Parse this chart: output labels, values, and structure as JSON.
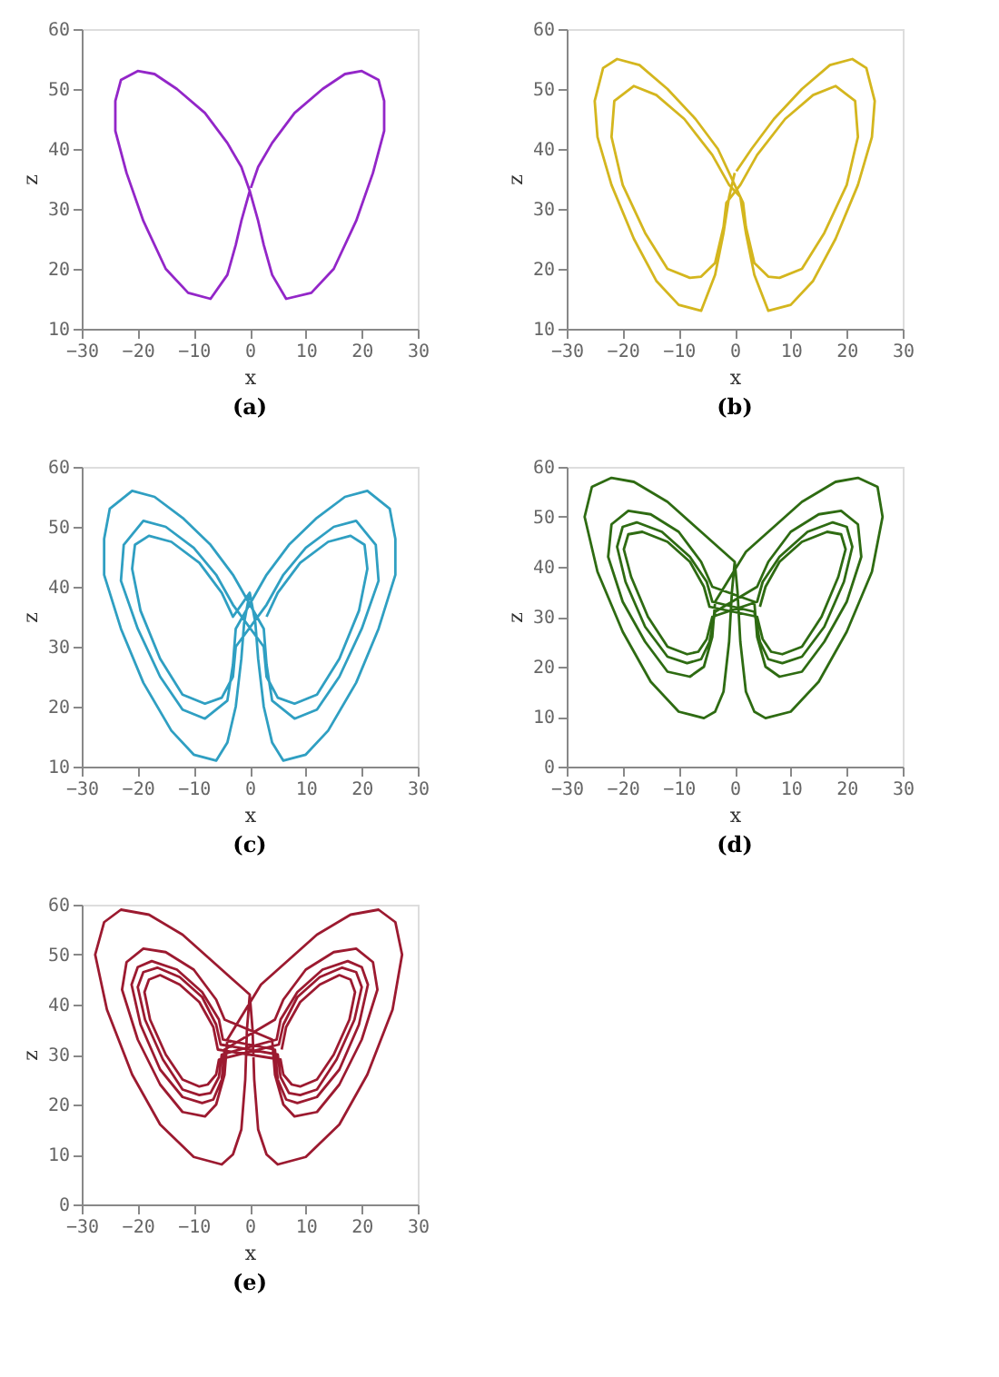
{
  "chart_data": [
    {
      "type": "line",
      "title": "(a)",
      "xlabel": "x",
      "ylabel": "z",
      "xlim": [
        -30,
        30
      ],
      "xticks": [
        -30,
        -20,
        -10,
        0,
        10,
        20,
        30
      ],
      "ylim": [
        10,
        60
      ],
      "yticks": [
        10,
        20,
        30,
        40,
        50,
        60
      ],
      "series": [
        {
          "color": "#9326c8",
          "x": [
            0,
            -1.5,
            -2.5,
            -4,
            -7,
            -11,
            -15,
            -19,
            -22,
            -24,
            -24,
            -23,
            -20,
            -17,
            -13,
            -8,
            -4,
            -1.5,
            0,
            1.5,
            2.5,
            4,
            6.5,
            11,
            15,
            19,
            22,
            24,
            24,
            23,
            20,
            17,
            13,
            8,
            4,
            1.5,
            0.2
          ],
          "values": [
            33,
            28,
            24,
            19,
            15,
            16,
            20,
            28,
            36,
            43,
            48,
            51.5,
            53,
            52.5,
            50,
            46,
            41,
            37,
            33,
            28,
            24,
            19,
            15,
            16,
            20,
            28,
            36,
            43,
            48,
            51.5,
            53,
            52.5,
            50,
            46,
            41,
            37,
            33.5
          ]
        }
      ]
    },
    {
      "type": "line",
      "title": "(b)",
      "xlabel": "x",
      "ylabel": "z",
      "xlim": [
        -30,
        30
      ],
      "xticks": [
        -30,
        -20,
        -10,
        0,
        10,
        20,
        30
      ],
      "ylim": [
        10,
        60
      ],
      "yticks": [
        10,
        20,
        30,
        40,
        50,
        60
      ],
      "series": [
        {
          "color": "#d4b61e",
          "x": [
            0,
            -1,
            -2,
            -3.5,
            -6,
            -10,
            -14,
            -18,
            -22,
            -24.5,
            -25,
            -23.5,
            -21,
            -17,
            -12,
            -7,
            -3,
            1.5,
            2,
            3.5,
            6,
            8,
            12,
            16,
            20,
            22,
            21.5,
            18,
            14,
            9,
            4,
            1,
            -1.5,
            -2,
            -3.5,
            -6,
            -8,
            -12,
            -16,
            -20,
            -22,
            -21.5,
            -18,
            -14,
            -9,
            -4,
            -1,
            1,
            2,
            3.5,
            6,
            10,
            14,
            18,
            22,
            24.5,
            25,
            23.5,
            21,
            17,
            12,
            7,
            3,
            0.3
          ],
          "values": [
            36,
            32,
            26,
            19,
            13,
            14,
            18,
            25,
            34,
            42,
            48,
            53.5,
            55,
            54,
            50,
            45,
            40,
            31,
            27,
            21,
            18.7,
            18.5,
            20,
            26,
            34,
            42,
            48,
            50.5,
            49,
            45,
            39,
            34,
            31,
            27,
            21,
            18.7,
            18.5,
            20,
            26,
            34,
            42,
            48,
            50.5,
            49,
            45,
            39,
            34,
            32,
            26,
            19,
            13,
            14,
            18,
            25,
            34,
            42,
            48,
            53.5,
            55,
            54,
            50,
            45,
            40,
            36.3
          ]
        }
      ]
    },
    {
      "type": "line",
      "title": "(c)",
      "xlabel": "x",
      "ylabel": "z",
      "xlim": [
        -30,
        30
      ],
      "xticks": [
        -30,
        -20,
        -10,
        0,
        10,
        20,
        30
      ],
      "ylim": [
        10,
        60
      ],
      "yticks": [
        10,
        20,
        30,
        40,
        50,
        60
      ],
      "series": [
        {
          "color": "#2f9fc2",
          "x": [
            0,
            -1,
            -1.5,
            -2.5,
            -4,
            -6,
            -10,
            -14,
            -19,
            -23,
            -26,
            -26,
            -25,
            -21,
            -17,
            -12,
            -7,
            -3,
            2.5,
            3,
            4,
            8,
            12,
            16,
            20,
            23,
            22.5,
            19,
            15,
            10,
            6,
            3,
            -2.5,
            -3,
            -5,
            -8,
            -12,
            -16,
            -19.5,
            -21,
            -20.5,
            -18,
            -14,
            -9,
            -5,
            -3,
            0,
            1,
            1.5,
            2.5,
            4,
            6,
            10,
            14,
            19,
            23,
            26,
            26,
            25,
            21,
            17,
            12,
            7,
            3,
            -2.5,
            -3,
            -4,
            -8,
            -12,
            -16,
            -20,
            -23,
            -22.5,
            -19,
            -15,
            -10,
            -6,
            -3,
            2.5,
            3,
            5,
            8,
            12,
            16,
            19.5,
            21,
            20.5,
            18,
            14,
            9,
            5,
            3
          ],
          "values": [
            39,
            34,
            28,
            20,
            14,
            11,
            12,
            16,
            24,
            33,
            42,
            48,
            53,
            56,
            55,
            51.5,
            47,
            42,
            33,
            27,
            21,
            18,
            19.5,
            25,
            33,
            41,
            47,
            51,
            50,
            46.5,
            42,
            37,
            30,
            25,
            21.5,
            20.5,
            22,
            28,
            36,
            43,
            47,
            48.5,
            47.5,
            44,
            39,
            35,
            39,
            34,
            28,
            20,
            14,
            11,
            12,
            16,
            24,
            33,
            42,
            48,
            53,
            56,
            55,
            51.5,
            47,
            42,
            33,
            27,
            21,
            18,
            19.5,
            25,
            33,
            41,
            47,
            51,
            50,
            46.5,
            42,
            37,
            30,
            25,
            21.5,
            20.5,
            22,
            28,
            36,
            43,
            47,
            48.5,
            47.5,
            44,
            39,
            35
          ]
        }
      ]
    },
    {
      "type": "line",
      "title": "(d)",
      "xlabel": "x",
      "ylabel": "z",
      "xlim": [
        -30,
        30
      ],
      "xticks": [
        -30,
        -20,
        -10,
        0,
        10,
        20,
        30
      ],
      "ylim": [
        0,
        60
      ],
      "yticks": [
        0,
        10,
        20,
        30,
        40,
        50,
        60
      ],
      "series": [
        {
          "color": "#2e6b12",
          "x": [
            0,
            -0.5,
            -1,
            -2,
            -3.5,
            -5.5,
            -10,
            -15,
            -20,
            -24.5,
            -26.8,
            -25.5,
            -22,
            -18,
            -12,
            -6,
            -2,
            0,
            0.5,
            1,
            2,
            3.5,
            5.5,
            10,
            15,
            20,
            24.5,
            26.4,
            25.5,
            22,
            18,
            12,
            6,
            2,
            -3.5,
            -4,
            -5.5,
            -8,
            -12,
            -16,
            -20,
            -22.6,
            -22,
            -19,
            -15,
            -10,
            -6,
            -4,
            3.5,
            4,
            5.5,
            8,
            12,
            16,
            20,
            22.6,
            22,
            19,
            15,
            10,
            6,
            4,
            -3.5,
            -4.5,
            -6,
            -8.5,
            -12,
            -16,
            -19.5,
            -21,
            -20,
            -17.5,
            -13,
            -8,
            -5,
            -4,
            3.5,
            4.5,
            6,
            8.5,
            12,
            16,
            19.5,
            21,
            20,
            17.5,
            13,
            8,
            5,
            4,
            -4,
            -5,
            -6.5,
            -8.5,
            -12,
            -15.5,
            -18.5,
            -19.8,
            -19,
            -16.5,
            -12,
            -8,
            -5.5,
            -4.5,
            4,
            5,
            6.5,
            8.5,
            12,
            15.5,
            18.5,
            19.8,
            19,
            16.5,
            12,
            8,
            5.5,
            4.5
          ],
          "values": [
            41,
            35,
            25,
            15,
            11,
            9.7,
            11,
            17,
            27,
            39,
            50,
            56,
            57.8,
            57,
            53,
            47,
            43,
            41,
            35,
            25,
            15,
            11,
            9.7,
            11,
            17,
            27,
            39,
            50,
            56,
            57.8,
            57,
            53,
            47,
            43,
            33,
            26,
            20,
            18,
            19,
            25,
            33,
            42,
            48.5,
            51.2,
            50.5,
            47,
            41,
            36,
            33,
            26,
            20,
            18,
            19,
            25,
            33,
            42,
            48.5,
            51.2,
            50.5,
            47,
            41,
            36,
            31,
            25,
            21.5,
            20.7,
            22,
            28,
            37,
            44,
            48,
            48.9,
            47,
            42,
            37,
            33,
            31,
            25,
            21.5,
            20.7,
            22,
            28,
            37,
            44,
            48,
            48.9,
            47,
            42,
            37,
            33,
            30,
            25.5,
            23,
            22.5,
            24,
            30,
            38,
            43.5,
            46.5,
            47,
            45,
            41,
            36,
            32,
            30,
            25.5,
            23,
            22.5,
            24,
            30,
            38,
            43.5,
            46.5,
            47,
            45,
            41,
            36,
            32
          ]
        }
      ]
    },
    {
      "type": "line",
      "title": "(e)",
      "xlabel": "x",
      "ylabel": "z",
      "xlim": [
        -30,
        30
      ],
      "xticks": [
        -30,
        -20,
        -10,
        0,
        10,
        20,
        30
      ],
      "ylim": [
        0,
        60
      ],
      "yticks": [
        0,
        10,
        20,
        30,
        40,
        50,
        60
      ],
      "series": [
        {
          "color": "#9c1a30",
          "x": [
            0,
            -0.5,
            -0.8,
            -1.5,
            -3,
            -5,
            -10,
            -16,
            -21,
            -25.5,
            -27.6,
            -26,
            -23,
            -18,
            -12,
            -6,
            -2,
            0,
            0.5,
            0.8,
            1.5,
            3,
            5,
            10,
            16,
            21,
            25.5,
            27.2,
            26,
            23,
            18,
            12,
            6,
            2,
            -4,
            -4.5,
            -6,
            -8,
            -12,
            -16,
            -20,
            -22.8,
            -22,
            -19,
            -15,
            -10,
            -6,
            -4.5,
            4,
            4.5,
            6,
            8,
            12,
            16,
            20,
            22.8,
            22,
            19,
            15,
            10,
            6,
            4.5,
            -4.5,
            -5,
            -6.5,
            -8.5,
            -12,
            -16,
            -19.5,
            -21.1,
            -20,
            -17.5,
            -13,
            -8.5,
            -5.5,
            -4.8,
            4.5,
            5,
            6.5,
            8.5,
            12,
            16,
            19.5,
            21.1,
            20,
            17.5,
            13,
            8.5,
            5.5,
            4.8,
            -5,
            -5.5,
            -7,
            -9,
            -12,
            -15.5,
            -18.7,
            -20,
            -19,
            -16.5,
            -12.5,
            -8.5,
            -6,
            -5.2,
            5,
            5.5,
            7,
            9,
            12,
            15.5,
            18.7,
            20,
            19,
            16.5,
            12.5,
            8.5,
            6,
            5.2,
            -5.5,
            -6,
            -7.5,
            -9,
            -12,
            -15,
            -17.8,
            -18.8,
            -18,
            -16,
            -12.5,
            -9,
            -6.5,
            -5.7,
            5.5,
            6,
            7.5,
            9,
            12,
            15,
            17.8,
            18.8,
            18,
            16,
            12.5,
            9,
            6.5,
            5.7
          ],
          "values": [
            42,
            35,
            25,
            15,
            10,
            8,
            9.5,
            16,
            26,
            39,
            50,
            56.5,
            59,
            58,
            54,
            48,
            44,
            42,
            35,
            25,
            15,
            10,
            8,
            9.5,
            16,
            26,
            39,
            50,
            56.5,
            59,
            58,
            54,
            48,
            44,
            33,
            26,
            20,
            17.6,
            18.5,
            24,
            33,
            43,
            48.5,
            51.2,
            50.5,
            47,
            41,
            37,
            33,
            26,
            20,
            17.6,
            18.5,
            24,
            33,
            43,
            48.5,
            51.2,
            50.5,
            47,
            41,
            37,
            31,
            25,
            21,
            20.3,
            21.5,
            27,
            36,
            44,
            47.5,
            48.7,
            47,
            42.5,
            37,
            33,
            31,
            25,
            21,
            20.3,
            21.5,
            27,
            36,
            44,
            47.5,
            48.7,
            47,
            42.5,
            37,
            33,
            30,
            25.5,
            22.3,
            21.9,
            23,
            29,
            37,
            43.5,
            46.5,
            47.4,
            45.5,
            41.5,
            36,
            32,
            30,
            25.5,
            22.3,
            21.9,
            23,
            29,
            37,
            43.5,
            46.5,
            47.4,
            45.5,
            41.5,
            36,
            32,
            29,
            26,
            24,
            23.6,
            25,
            30,
            37,
            42.5,
            45,
            45.9,
            44,
            40.5,
            35.5,
            31,
            29,
            26,
            24,
            23.6,
            25,
            30,
            37,
            42.5,
            45,
            45.9,
            44,
            40.5,
            35.5,
            31
          ]
        }
      ]
    }
  ]
}
